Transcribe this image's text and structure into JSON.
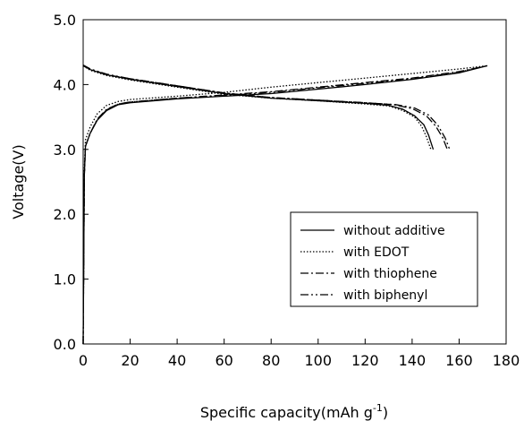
{
  "chart_data": {
    "type": "line",
    "xlabel": "Specific capacity(mAh g",
    "xlabel_sup": "-1",
    "xlabel_end": ")",
    "ylabel": "Voltage(V)",
    "xlim": [
      0,
      180
    ],
    "ylim": [
      0,
      5.0
    ],
    "xticks": [
      "0",
      "20",
      "40",
      "60",
      "80",
      "100",
      "120",
      "140",
      "160",
      "180"
    ],
    "yticks": [
      "0.0",
      "1.0",
      "2.0",
      "3.0",
      "4.0",
      "5.0"
    ],
    "grid": false,
    "legend_position": "lower-right",
    "series": [
      {
        "name": "without additive",
        "dash": "solid",
        "charge": [
          [
            0,
            0
          ],
          [
            0.5,
            2.6
          ],
          [
            1,
            3.05
          ],
          [
            3,
            3.25
          ],
          [
            6,
            3.45
          ],
          [
            10,
            3.6
          ],
          [
            15,
            3.69
          ],
          [
            20,
            3.72
          ],
          [
            40,
            3.78
          ],
          [
            60,
            3.82
          ],
          [
            80,
            3.86
          ],
          [
            100,
            3.93
          ],
          [
            120,
            4.0
          ],
          [
            140,
            4.08
          ],
          [
            160,
            4.18
          ],
          [
            172,
            4.29
          ]
        ],
        "discharge": [
          [
            0,
            4.29
          ],
          [
            3,
            4.23
          ],
          [
            10,
            4.15
          ],
          [
            20,
            4.08
          ],
          [
            40,
            3.97
          ],
          [
            60,
            3.86
          ],
          [
            80,
            3.79
          ],
          [
            100,
            3.75
          ],
          [
            120,
            3.71
          ],
          [
            130,
            3.68
          ],
          [
            136,
            3.62
          ],
          [
            141,
            3.52
          ],
          [
            145,
            3.38
          ],
          [
            147,
            3.22
          ],
          [
            149,
            3.0
          ]
        ]
      },
      {
        "name": "with EDOT",
        "dash": "dotted",
        "charge": [
          [
            0,
            0
          ],
          [
            0.5,
            2.7
          ],
          [
            1,
            3.15
          ],
          [
            3,
            3.35
          ],
          [
            6,
            3.55
          ],
          [
            10,
            3.68
          ],
          [
            15,
            3.74
          ],
          [
            20,
            3.77
          ],
          [
            40,
            3.82
          ],
          [
            60,
            3.88
          ],
          [
            80,
            3.96
          ],
          [
            100,
            4.03
          ],
          [
            120,
            4.1
          ],
          [
            140,
            4.17
          ],
          [
            160,
            4.24
          ],
          [
            172,
            4.29
          ]
        ],
        "discharge": [
          [
            0,
            4.29
          ],
          [
            3,
            4.22
          ],
          [
            10,
            4.14
          ],
          [
            20,
            4.07
          ],
          [
            40,
            3.96
          ],
          [
            60,
            3.85
          ],
          [
            80,
            3.79
          ],
          [
            100,
            3.75
          ],
          [
            120,
            3.7
          ],
          [
            130,
            3.67
          ],
          [
            136,
            3.6
          ],
          [
            141,
            3.5
          ],
          [
            144,
            3.36
          ],
          [
            146,
            3.2
          ],
          [
            148,
            3.0
          ]
        ]
      },
      {
        "name": "with thiophene",
        "dash": "dash-dot",
        "charge": [
          [
            0,
            0
          ],
          [
            0.5,
            2.6
          ],
          [
            1,
            3.05
          ],
          [
            3,
            3.25
          ],
          [
            6,
            3.47
          ],
          [
            10,
            3.62
          ],
          [
            15,
            3.7
          ],
          [
            20,
            3.73
          ],
          [
            40,
            3.79
          ],
          [
            60,
            3.84
          ],
          [
            80,
            3.89
          ],
          [
            100,
            3.96
          ],
          [
            120,
            4.03
          ],
          [
            140,
            4.1
          ],
          [
            160,
            4.2
          ],
          [
            172,
            4.29
          ]
        ],
        "discharge": [
          [
            0,
            4.3
          ],
          [
            3,
            4.24
          ],
          [
            10,
            4.15
          ],
          [
            20,
            4.09
          ],
          [
            40,
            3.98
          ],
          [
            60,
            3.87
          ],
          [
            80,
            3.8
          ],
          [
            100,
            3.76
          ],
          [
            120,
            3.72
          ],
          [
            132,
            3.69
          ],
          [
            140,
            3.63
          ],
          [
            146,
            3.52
          ],
          [
            150,
            3.36
          ],
          [
            153,
            3.18
          ],
          [
            155,
            3.0
          ]
        ]
      },
      {
        "name": "with biphenyl",
        "dash": "dash-dot-dot",
        "charge": [
          [
            0,
            0
          ],
          [
            0.5,
            2.6
          ],
          [
            1,
            3.05
          ],
          [
            3,
            3.25
          ],
          [
            6,
            3.46
          ],
          [
            10,
            3.61
          ],
          [
            15,
            3.7
          ],
          [
            20,
            3.73
          ],
          [
            40,
            3.79
          ],
          [
            60,
            3.83
          ],
          [
            80,
            3.88
          ],
          [
            100,
            3.95
          ],
          [
            120,
            4.02
          ],
          [
            140,
            4.09
          ],
          [
            160,
            4.19
          ],
          [
            172,
            4.29
          ]
        ],
        "discharge": [
          [
            0,
            4.3
          ],
          [
            3,
            4.24
          ],
          [
            10,
            4.16
          ],
          [
            20,
            4.09
          ],
          [
            40,
            3.98
          ],
          [
            60,
            3.87
          ],
          [
            80,
            3.8
          ],
          [
            100,
            3.76
          ],
          [
            120,
            3.72
          ],
          [
            133,
            3.69
          ],
          [
            141,
            3.64
          ],
          [
            147,
            3.53
          ],
          [
            151,
            3.37
          ],
          [
            154,
            3.18
          ],
          [
            156,
            3.0
          ]
        ]
      }
    ]
  }
}
